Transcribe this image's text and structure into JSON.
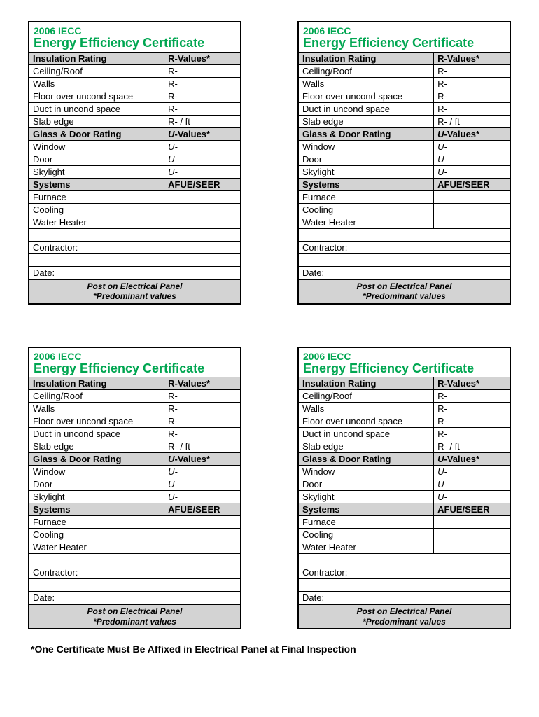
{
  "cert": {
    "iecc": "2006 IECC",
    "title": "Energy Efficiency Certificate",
    "sections": {
      "insulation": {
        "header": "Insulation Rating",
        "valueHeader": "R-Values*"
      },
      "glassDoor": {
        "header": "Glass & Door Rating",
        "valueHeaderPrefix": "U",
        "valueHeaderSuffix": "-Values*"
      },
      "systems": {
        "header": "Systems",
        "valueHeader": "AFUE/SEER"
      }
    },
    "rows": {
      "ceiling": {
        "label": "Ceiling/Roof",
        "value": "R-"
      },
      "walls": {
        "label": "Walls",
        "value": "R-"
      },
      "floor": {
        "label": "Floor over uncond space",
        "value": "R-"
      },
      "duct": {
        "label": "Duct in uncond space",
        "value": "R-"
      },
      "slab": {
        "label": "Slab edge",
        "value": "R-      /    ft"
      },
      "window": {
        "label": "Window",
        "value": "U-"
      },
      "door": {
        "label": "Door",
        "value": "U-"
      },
      "skylight": {
        "label": "Skylight",
        "value": "U-"
      },
      "furnace": {
        "label": "Furnace",
        "value": ""
      },
      "cooling": {
        "label": "Cooling",
        "value": ""
      },
      "waterHeater": {
        "label": "Water Heater",
        "value": ""
      }
    },
    "contractor": "Contractor:",
    "date": "Date:",
    "footerLine1": "Post on Electrical Panel",
    "footerLine2": "*Predominant values"
  },
  "bottomNote": "*One Certificate Must Be Affixed in Electrical Panel at Final Inspection"
}
